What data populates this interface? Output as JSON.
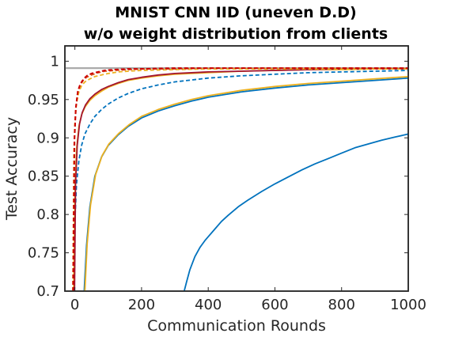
{
  "chart_data": {
    "type": "line",
    "title": [
      "MNIST CNN IID (uneven D.D)",
      "w/o weight distribution from clients"
    ],
    "xlabel": "Communication Rounds",
    "ylabel": "Test Accuracy",
    "xlim": [
      -30,
      1000
    ],
    "ylim": [
      0.7,
      1.02
    ],
    "xticks": [
      0,
      200,
      400,
      600,
      800,
      1000
    ],
    "yticks": [
      0.7,
      0.75,
      0.8,
      0.85,
      0.9,
      0.95,
      1
    ],
    "ytick_labels": [
      "0.7",
      "0.75",
      "0.8",
      "0.85",
      "0.9",
      "0.95",
      "1"
    ],
    "grid": false,
    "legend": "none",
    "series": [
      {
        "color": "#aaaaaa",
        "style": "solid",
        "width": 2.2,
        "x": [
          -30,
          1000
        ],
        "y": [
          0.991,
          0.991
        ]
      },
      {
        "color": "#0072bd",
        "style": "solid",
        "width": 1.8,
        "x": [
          328,
          335,
          345,
          360,
          375,
          390,
          400,
          420,
          440,
          460,
          490,
          520,
          560,
          600,
          640,
          680,
          720,
          760,
          800,
          840,
          880,
          920,
          960,
          1000
        ],
        "y": [
          0.7,
          0.712,
          0.728,
          0.745,
          0.757,
          0.766,
          0.771,
          0.781,
          0.791,
          0.799,
          0.81,
          0.819,
          0.83,
          0.84,
          0.849,
          0.858,
          0.866,
          0.873,
          0.88,
          0.887,
          0.892,
          0.897,
          0.901,
          0.905
        ]
      },
      {
        "color": "#0072bd",
        "style": "solid",
        "width": 1.8,
        "x": [
          28,
          35,
          45,
          60,
          80,
          100,
          130,
          160,
          200,
          250,
          300,
          350,
          400,
          500,
          600,
          700,
          800,
          900,
          1000
        ],
        "y": [
          0.7,
          0.76,
          0.81,
          0.85,
          0.875,
          0.89,
          0.904,
          0.915,
          0.926,
          0.935,
          0.942,
          0.948,
          0.953,
          0.96,
          0.965,
          0.969,
          0.972,
          0.975,
          0.978
        ]
      },
      {
        "color": "#edb120",
        "style": "solid",
        "width": 1.8,
        "x": [
          30,
          37,
          47,
          62,
          82,
          102,
          132,
          162,
          200,
          250,
          300,
          350,
          400,
          500,
          600,
          700,
          800,
          900,
          1000
        ],
        "y": [
          0.7,
          0.762,
          0.812,
          0.852,
          0.877,
          0.892,
          0.906,
          0.917,
          0.928,
          0.937,
          0.944,
          0.95,
          0.955,
          0.962,
          0.967,
          0.971,
          0.974,
          0.977,
          0.98
        ]
      },
      {
        "color": "#0072bd",
        "style": "dashed",
        "width": 1.8,
        "x": [
          -3,
          0,
          5,
          12,
          20,
          30,
          45,
          60,
          80,
          100,
          130,
          160,
          200,
          250,
          300,
          400,
          500,
          600,
          700,
          800,
          900,
          1000
        ],
        "y": [
          0.7,
          0.79,
          0.84,
          0.87,
          0.89,
          0.905,
          0.918,
          0.928,
          0.937,
          0.944,
          0.952,
          0.958,
          0.964,
          0.969,
          0.973,
          0.978,
          0.981,
          0.983,
          0.985,
          0.986,
          0.987,
          0.988
        ]
      },
      {
        "color": "#edb120",
        "style": "solid",
        "width": 1.8,
        "x": [
          -4,
          0,
          5,
          12,
          20,
          30,
          45,
          60,
          80,
          100,
          130,
          160,
          200,
          250,
          300,
          400,
          500,
          600,
          700,
          800,
          900,
          1000
        ],
        "y": [
          0.7,
          0.83,
          0.885,
          0.915,
          0.93,
          0.94,
          0.949,
          0.955,
          0.961,
          0.966,
          0.971,
          0.975,
          0.978,
          0.981,
          0.983,
          0.985,
          0.987,
          0.988,
          0.989,
          0.989,
          0.99,
          0.99
        ]
      },
      {
        "color": "#a2142f",
        "style": "solid",
        "width": 1.8,
        "x": [
          -1,
          2,
          7,
          14,
          22,
          32,
          45,
          60,
          80,
          100,
          130,
          160,
          200,
          250,
          300,
          400,
          500,
          600,
          700,
          800,
          900,
          1000
        ],
        "y": [
          0.7,
          0.84,
          0.89,
          0.918,
          0.933,
          0.943,
          0.951,
          0.957,
          0.963,
          0.967,
          0.972,
          0.976,
          0.979,
          0.982,
          0.984,
          0.986,
          0.987,
          0.988,
          0.989,
          0.99,
          0.99,
          0.99
        ]
      },
      {
        "color": "#edb120",
        "style": "dashed",
        "width": 1.8,
        "x": [
          -6,
          -3,
          0,
          5,
          12,
          20,
          30,
          45,
          60,
          80,
          100,
          130,
          160,
          200,
          300,
          400,
          500,
          600,
          700,
          800,
          900,
          1000
        ],
        "y": [
          0.7,
          0.88,
          0.92,
          0.945,
          0.96,
          0.968,
          0.973,
          0.977,
          0.98,
          0.982,
          0.984,
          0.986,
          0.987,
          0.988,
          0.989,
          0.99,
          0.99,
          0.99,
          0.99,
          0.99,
          0.99,
          0.99
        ]
      },
      {
        "color": "#d95319",
        "style": "dashed",
        "width": 1.8,
        "x": [
          -6,
          -2,
          2,
          8,
          15,
          25,
          35,
          50,
          70,
          90,
          120,
          160,
          200,
          300,
          400,
          500,
          600,
          700,
          800,
          900,
          1000
        ],
        "y": [
          0.7,
          0.89,
          0.935,
          0.958,
          0.968,
          0.975,
          0.979,
          0.982,
          0.985,
          0.987,
          0.988,
          0.989,
          0.99,
          0.99,
          0.991,
          0.991,
          0.991,
          0.991,
          0.991,
          0.991,
          0.991
        ]
      },
      {
        "color": "#cc0000",
        "style": "dashed",
        "width": 2.0,
        "x": [
          -5,
          -1,
          3,
          9,
          16,
          26,
          36,
          50,
          70,
          90,
          120,
          160,
          200,
          300,
          400,
          500,
          600,
          700,
          800,
          900,
          1000
        ],
        "y": [
          0.7,
          0.9,
          0.94,
          0.961,
          0.97,
          0.977,
          0.981,
          0.984,
          0.986,
          0.988,
          0.989,
          0.99,
          0.99,
          0.991,
          0.991,
          0.991,
          0.991,
          0.991,
          0.991,
          0.991,
          0.991
        ]
      }
    ]
  }
}
